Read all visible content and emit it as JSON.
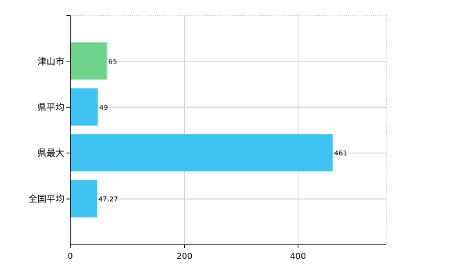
{
  "chart_data": {
    "type": "bar",
    "orientation": "horizontal",
    "categories": [
      "津山市",
      "県平均",
      "県最大",
      "全国平均"
    ],
    "values": [
      65,
      49,
      461,
      47.27
    ],
    "value_labels": [
      "65",
      "49",
      "461",
      "47.27"
    ],
    "bar_colors": [
      "#6fd38b",
      "#3ec3f3",
      "#3ec3f3",
      "#3ec3f3"
    ],
    "xlim": [
      0,
      555
    ],
    "x_ticks": [
      0,
      200,
      400
    ],
    "x_tick_labels": [
      "0",
      "200",
      "400"
    ],
    "grid": true,
    "legend": "none"
  }
}
